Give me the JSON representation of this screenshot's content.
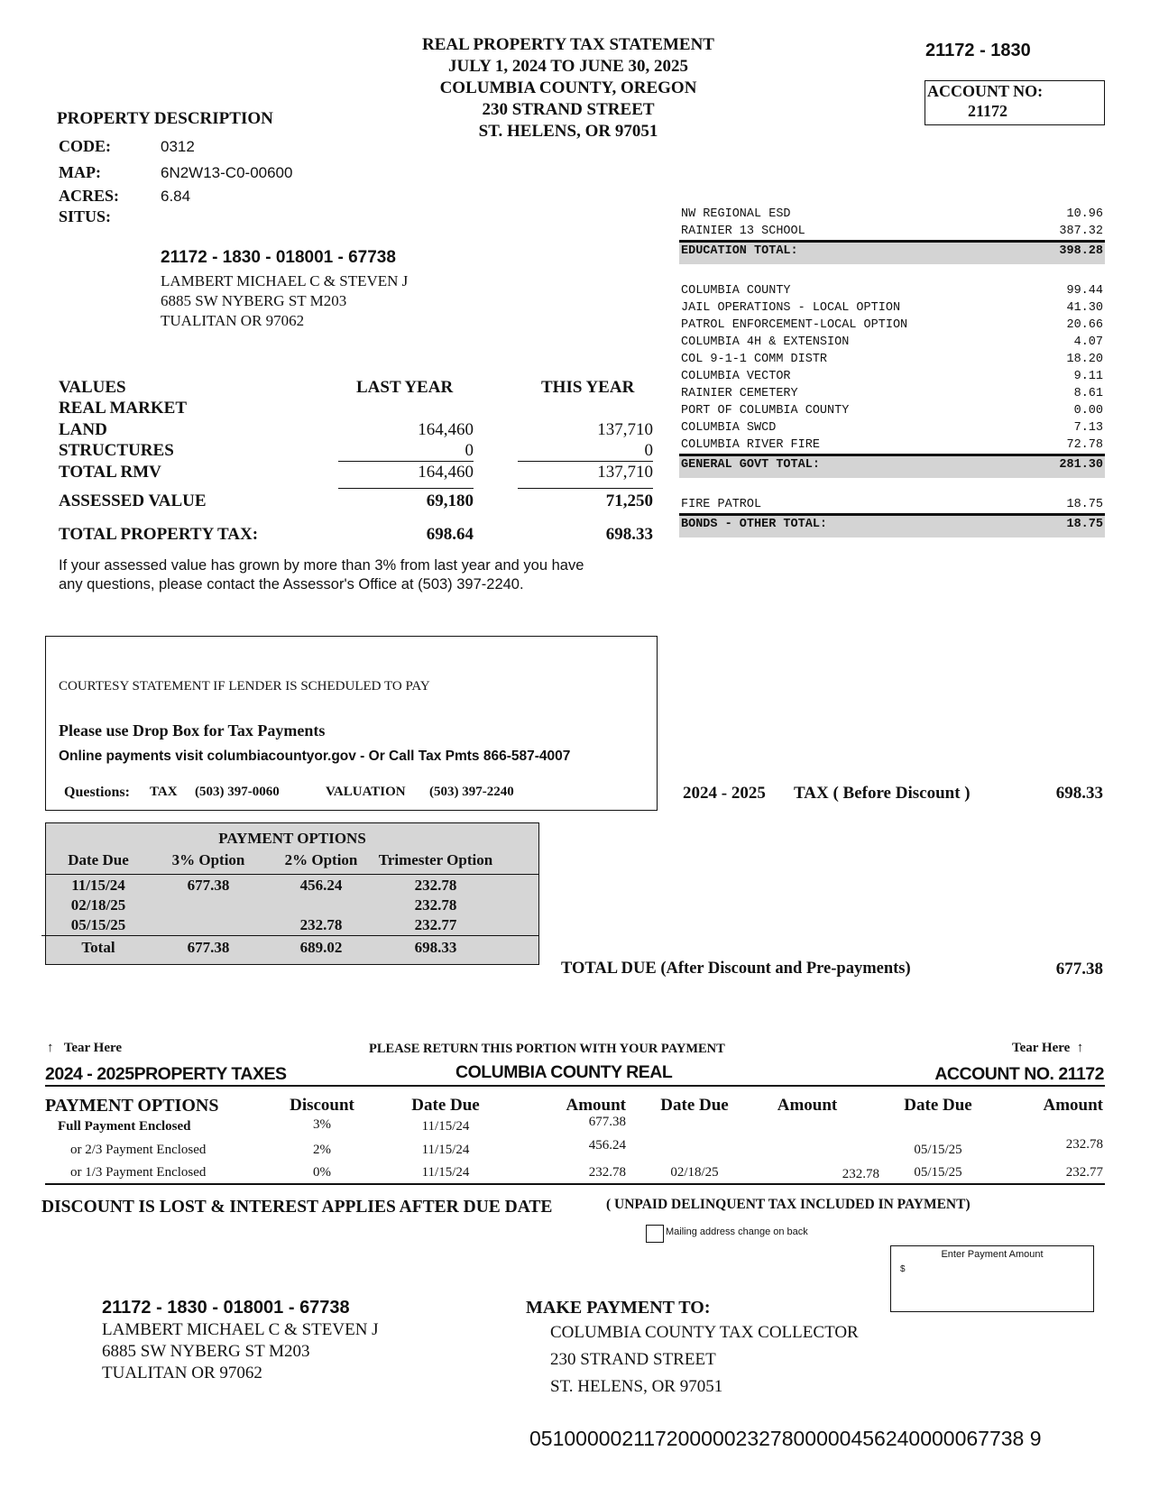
{
  "header": {
    "title_lines": [
      "REAL PROPERTY TAX STATEMENT",
      "JULY 1, 2024 TO JUNE 30, 2025",
      "COLUMBIA COUNTY, OREGON",
      "230 STRAND STREET",
      "ST. HELENS, OR 97051"
    ],
    "ref": "21172 - 1830",
    "account_label": "ACCOUNT NO:",
    "account_no": "21172"
  },
  "property": {
    "heading": "PROPERTY DESCRIPTION",
    "code_label": "CODE:",
    "code": "0312",
    "map_label": "MAP:",
    "map": "6N2W13-C0-00600",
    "acres_label": "ACRES:",
    "acres": "6.84",
    "situs_label": "SITUS:",
    "situs": "",
    "owner_id": "21172 - 1830 - 018001 - 67738",
    "owner_lines": [
      "LAMBERT MICHAEL C & STEVEN J",
      "6885 SW NYBERG ST M203",
      "TUALITAN OR  97062"
    ]
  },
  "values": {
    "heading": "VALUES",
    "last_year": "LAST YEAR",
    "this_year": "THIS YEAR",
    "real_market": "REAL MARKET",
    "rows": [
      {
        "label": "LAND",
        "last": "164,460",
        "this": "137,710"
      },
      {
        "label": "STRUCTURES",
        "last": "0",
        "this": "0"
      },
      {
        "label": "TOTAL RMV",
        "last": "164,460",
        "this": "137,710"
      },
      {
        "label": "ASSESSED VALUE",
        "last": "69,180",
        "this": "71,250"
      },
      {
        "label": "TOTAL PROPERTY TAX:",
        "last": "698.64",
        "this": "698.33"
      }
    ],
    "notice_lines": [
      "If your assessed value has grown by more than 3% from last year and you have",
      "any questions, please contact the Assessor's Office at (503) 397-2240."
    ]
  },
  "tax_breakdown": {
    "education": [
      {
        "name": "NW REGIONAL ESD",
        "amount": "10.96"
      },
      {
        "name": "RAINIER 13 SCHOOL",
        "amount": "387.32"
      }
    ],
    "education_total": {
      "name": "EDUCATION TOTAL:",
      "amount": "398.28"
    },
    "general": [
      {
        "name": "COLUMBIA COUNTY",
        "amount": "99.44"
      },
      {
        "name": "JAIL OPERATIONS - LOCAL OPTION",
        "amount": "41.30"
      },
      {
        "name": "PATROL ENFORCEMENT-LOCAL OPTION",
        "amount": "20.66"
      },
      {
        "name": "COLUMBIA 4H & EXTENSION",
        "amount": "4.07"
      },
      {
        "name": "COL 9-1-1 COMM DISTR",
        "amount": "18.20"
      },
      {
        "name": "COLUMBIA VECTOR",
        "amount": "9.11"
      },
      {
        "name": "RAINIER CEMETERY",
        "amount": "8.61"
      },
      {
        "name": "PORT OF COLUMBIA COUNTY",
        "amount": "0.00"
      },
      {
        "name": "COLUMBIA SWCD",
        "amount": "7.13"
      },
      {
        "name": "COLUMBIA RIVER FIRE",
        "amount": "72.78"
      }
    ],
    "general_total": {
      "name": "GENERAL GOVT TOTAL:",
      "amount": "281.30"
    },
    "bonds": [
      {
        "name": "FIRE PATROL",
        "amount": "18.75"
      }
    ],
    "bonds_total": {
      "name": "BONDS - OTHER TOTAL:",
      "amount": "18.75"
    }
  },
  "courtesy": {
    "statement": "COURTESY STATEMENT IF LENDER IS SCHEDULED TO PAY",
    "drop_box": "Please use Drop Box for Tax Payments",
    "online": "Online payments visit columbiacountyor.gov  - Or Call Tax Pmts 866-587-4007",
    "questions_label": "Questions:",
    "tax_label": "TAX",
    "tax_phone": "(503) 397-0060",
    "valuation_label": "VALUATION",
    "valuation_phone": "(503) 397-2240"
  },
  "summary": {
    "year": "2024 - 2025",
    "before_discount_label": "TAX ( Before Discount )",
    "before_discount": "698.33",
    "total_due_label": "TOTAL DUE (After Discount and Pre-payments)",
    "total_due": "677.38"
  },
  "payment_options": {
    "title": "PAYMENT OPTIONS",
    "headers": [
      "Date Due",
      "3% Option",
      "2% Option",
      "Trimester Option"
    ],
    "rows": [
      [
        "11/15/24",
        "677.38",
        "456.24",
        "232.78"
      ],
      [
        "02/18/25",
        "",
        "",
        "232.78"
      ],
      [
        "05/15/25",
        "",
        "232.78",
        "232.77"
      ]
    ],
    "total": [
      "Total",
      "677.38",
      "689.02",
      "698.33"
    ]
  },
  "stub": {
    "tear_here": "Tear Here",
    "return_notice": "PLEASE RETURN THIS PORTION WITH YOUR PAYMENT",
    "left_title": "2024 - 2025PROPERTY TAXES",
    "center_title": "COLUMBIA COUNTY REAL",
    "right_title": "ACCOUNT NO. 21172",
    "headers": [
      "PAYMENT OPTIONS",
      "Discount",
      "Date Due",
      "Amount",
      "Date Due",
      "Amount",
      "Date Due",
      "Amount"
    ],
    "rows": [
      [
        "Full Payment Enclosed",
        "3%",
        "11/15/24",
        "677.38",
        "",
        "",
        "",
        ""
      ],
      [
        "or 2/3 Payment Enclosed",
        "2%",
        "11/15/24",
        "456.24",
        "",
        "",
        "05/15/25",
        "232.78"
      ],
      [
        "or 1/3 Payment Enclosed",
        "0%",
        "11/15/24",
        "232.78",
        "02/18/25",
        "232.78",
        "05/15/25",
        "232.77"
      ]
    ],
    "discount_warning": "DISCOUNT IS LOST & INTEREST APPLIES AFTER DUE DATE",
    "delinquent_note": "( UNPAID DELINQUENT TAX INCLUDED IN PAYMENT)",
    "mailing_change": "Mailing address change on back",
    "mailing_change_checked": false,
    "enter_amount_label": "Enter Payment Amount",
    "currency": "$",
    "owner_id": "21172 - 1830 - 018001 - 67738",
    "owner_lines": [
      "LAMBERT MICHAEL C & STEVEN J",
      "6885 SW NYBERG ST M203",
      "TUALITAN OR  97062"
    ],
    "make_payment_label": "MAKE PAYMENT TO:",
    "payee_lines": [
      "COLUMBIA COUNTY TAX COLLECTOR",
      "230 STRAND STREET",
      "ST. HELENS, OR 97051"
    ],
    "scanline": "0510000021172000002327800000456240000067738 9"
  }
}
